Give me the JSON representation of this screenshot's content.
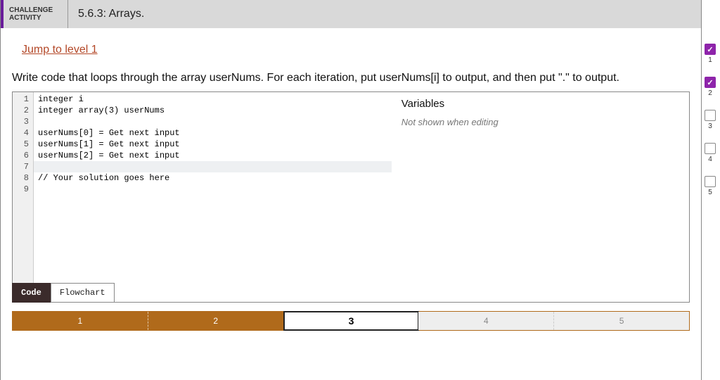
{
  "header": {
    "label_line1": "CHALLENGE",
    "label_line2": "ACTIVITY",
    "title": "5.6.3: Arrays."
  },
  "jump_link": "Jump to level 1",
  "prompt": "Write code that loops through the array userNums. For each iteration, put userNums[i] to output, and then put \".\" to output.",
  "code": {
    "lines": [
      "integer i",
      "integer array(3) userNums",
      "",
      "userNums[0] = Get next input",
      "userNums[1] = Get next input",
      "userNums[2] = Get next input",
      "",
      "// Your solution goes here",
      ""
    ],
    "cursor_line_index": 6
  },
  "variables": {
    "title": "Variables",
    "note": "Not shown when editing"
  },
  "tabs": {
    "items": [
      "Code",
      "Flowchart"
    ],
    "active_index": 0
  },
  "step_nav": {
    "steps": [
      "1",
      "2",
      "3",
      "4",
      "5"
    ],
    "current_index": 2,
    "done_color": "#b06a1b",
    "future_color": "#eeeeee"
  },
  "level_rail": {
    "levels": [
      {
        "num": "1",
        "checked": true
      },
      {
        "num": "2",
        "checked": true
      },
      {
        "num": "3",
        "checked": false
      },
      {
        "num": "4",
        "checked": false
      },
      {
        "num": "5",
        "checked": false
      }
    ],
    "checked_color": "#8e24aa"
  }
}
